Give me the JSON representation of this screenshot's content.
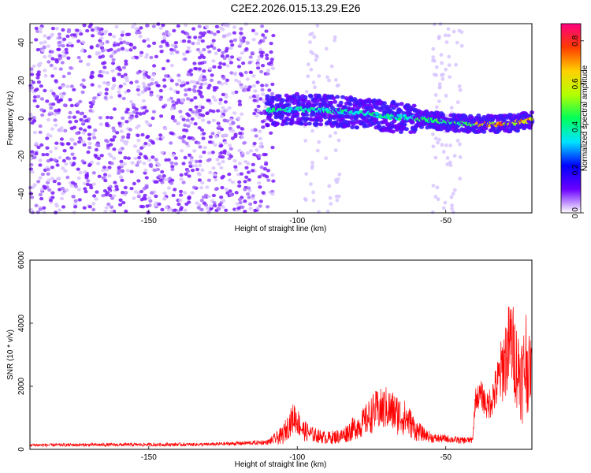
{
  "title": "C2E2.2026.015.13.29.E26",
  "chart_data": [
    {
      "type": "heatmap",
      "name": "spectrogram",
      "xlabel": "Height of straight line (km)",
      "ylabel": "Frequency (Hz)",
      "xlim": [
        -190,
        -21
      ],
      "ylim": [
        -50,
        50
      ],
      "xticks": [
        -150,
        -100,
        -50
      ],
      "yticks": [
        -40,
        -20,
        0,
        20,
        40
      ],
      "colorbar": {
        "label": "Normalized spectral amplitude",
        "range": [
          0.0,
          0.88
        ],
        "ticks": [
          0.0,
          0.2,
          0.4,
          0.6,
          0.8
        ],
        "colormap": [
          "#ffffff",
          "#6a00ff",
          "#0000ff",
          "#00e5ff",
          "#00ff5a",
          "#b4ff00",
          "#ffd000",
          "#ff3b00",
          "#ff0080"
        ]
      },
      "ridge": {
        "description_points_x": [
          -110,
          -100,
          -90,
          -80,
          -70,
          -60,
          -50,
          -40,
          -30,
          -21
        ],
        "description_points_y": [
          4,
          5,
          4,
          3,
          1,
          0,
          -2,
          -3,
          -3,
          -1
        ]
      }
    },
    {
      "type": "line",
      "name": "snr",
      "xlabel": "Height of straight line (km)",
      "ylabel": "SNR (10 * v/v)",
      "xlim": [
        -190,
        -21
      ],
      "ylim": [
        0,
        6000
      ],
      "xticks": [
        -150,
        -100,
        -50
      ],
      "yticks": [
        0,
        2000,
        4000,
        6000
      ],
      "color": "#ff0000",
      "envelope": {
        "x": [
          -190,
          -160,
          -130,
          -110,
          -105,
          -101,
          -98,
          -95,
          -90,
          -85,
          -82,
          -78,
          -74,
          -70,
          -66,
          -63,
          -60,
          -57,
          -54,
          -50,
          -45,
          -41,
          -40,
          -38,
          -36,
          -33,
          -30,
          -28,
          -26,
          -24,
          -23,
          -22,
          -21
        ],
        "base": [
          120,
          130,
          140,
          200,
          350,
          900,
          500,
          400,
          300,
          350,
          500,
          700,
          1000,
          1100,
          900,
          800,
          500,
          400,
          300,
          300,
          250,
          260,
          1500,
          1600,
          1200,
          1700,
          2500,
          3000,
          2200,
          1800,
          2400,
          2000,
          2500
        ],
        "amp": [
          100,
          110,
          110,
          150,
          600,
          1000,
          700,
          500,
          400,
          500,
          700,
          900,
          1300,
          1400,
          1300,
          1100,
          700,
          400,
          300,
          250,
          220,
          220,
          700,
          900,
          900,
          1500,
          2600,
          3000,
          2800,
          3000,
          3600,
          2500,
          1500
        ]
      }
    }
  ]
}
